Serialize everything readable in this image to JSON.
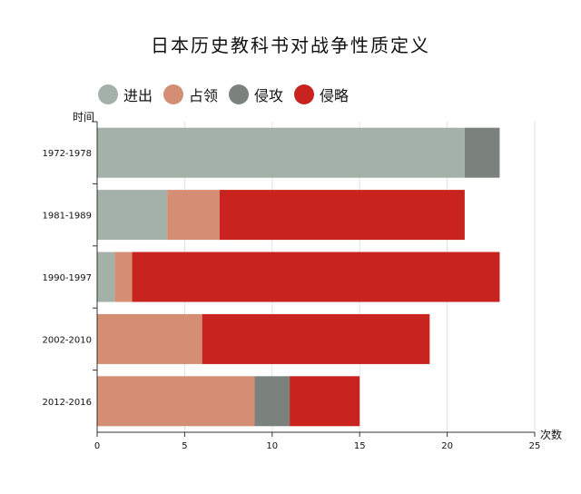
{
  "chart_data": {
    "type": "bar",
    "orientation": "horizontal",
    "stacked": true,
    "title": "日本历史教科书对战争性质定义",
    "xlabel": "次数",
    "ylabel": "时间",
    "xlim": [
      0,
      25
    ],
    "xticks": [
      "0",
      "5",
      "10",
      "15",
      "20",
      "25"
    ],
    "categories": [
      "1972-1978",
      "1981-1989",
      "1990-1997",
      "2002-2010",
      "2012-2016"
    ],
    "series": [
      {
        "name": "进出",
        "color": "#a3b1a8",
        "values": [
          21,
          4,
          1,
          0,
          0
        ]
      },
      {
        "name": "占领",
        "color": "#d38e73",
        "values": [
          0,
          3,
          1,
          6,
          9
        ]
      },
      {
        "name": "侵攻",
        "color": "#7b827d",
        "values": [
          2,
          0,
          0,
          0,
          2
        ]
      },
      {
        "name": "侵略",
        "color": "#c8231f",
        "values": [
          0,
          14,
          21,
          13,
          4
        ]
      }
    ],
    "grid": "vertical",
    "legend_position": "top-left"
  }
}
